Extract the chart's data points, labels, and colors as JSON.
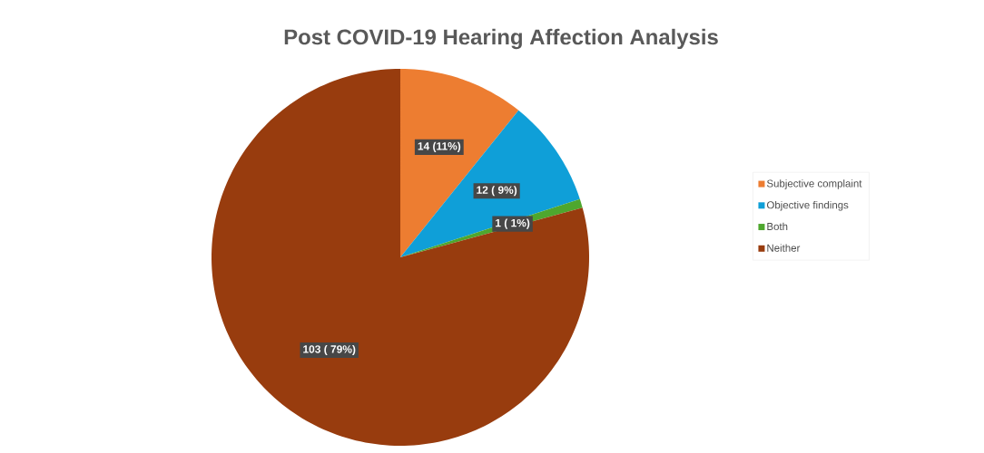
{
  "chart_data": {
    "type": "pie",
    "title": "Post COVID-19 Hearing Affection Analysis",
    "categories": [
      "Subjective complaint",
      "Objective findings",
      "Both",
      "Neither"
    ],
    "values": [
      14,
      12,
      1,
      103
    ],
    "value_labels": [
      "14 (11%)",
      "12 ( 9%)",
      "1 ( 1%)",
      "103 ( 79%)"
    ],
    "colors": [
      "#ed7d31",
      "#0f9fd8",
      "#4ea72e",
      "#983c0e"
    ],
    "legend": "right"
  }
}
